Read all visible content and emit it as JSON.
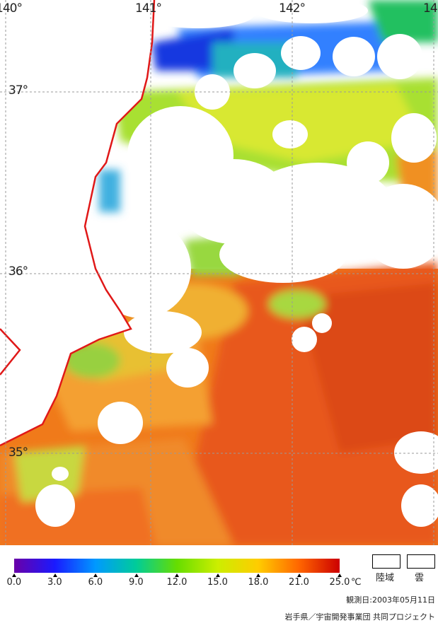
{
  "map": {
    "lon_labels": [
      "140°",
      "141°",
      "142°",
      "14"
    ],
    "lat_labels": [
      "37°",
      "36°",
      "35°"
    ],
    "colors": {
      "coastline": "#e01818",
      "grid": "#9a9a9a",
      "land_cloud": "#ffffff"
    }
  },
  "colorbar": {
    "tick_labels": [
      "0.0",
      "3.0",
      "6.0",
      "9.0",
      "12.0",
      "15.0",
      "18.0",
      "21.0",
      "25.0"
    ],
    "unit": "℃",
    "stops": [
      "#6a00a8",
      "#1a1aff",
      "#0099ff",
      "#00cc99",
      "#66dd00",
      "#ccee00",
      "#ffcc00",
      "#ff6600",
      "#cc0000"
    ]
  },
  "legend": {
    "land": "陸域",
    "cloud": "雲"
  },
  "observation_date": "観測日:2003年05月11日",
  "credit": "岩手県／宇宙開発事業団 共同プロジェクト"
}
